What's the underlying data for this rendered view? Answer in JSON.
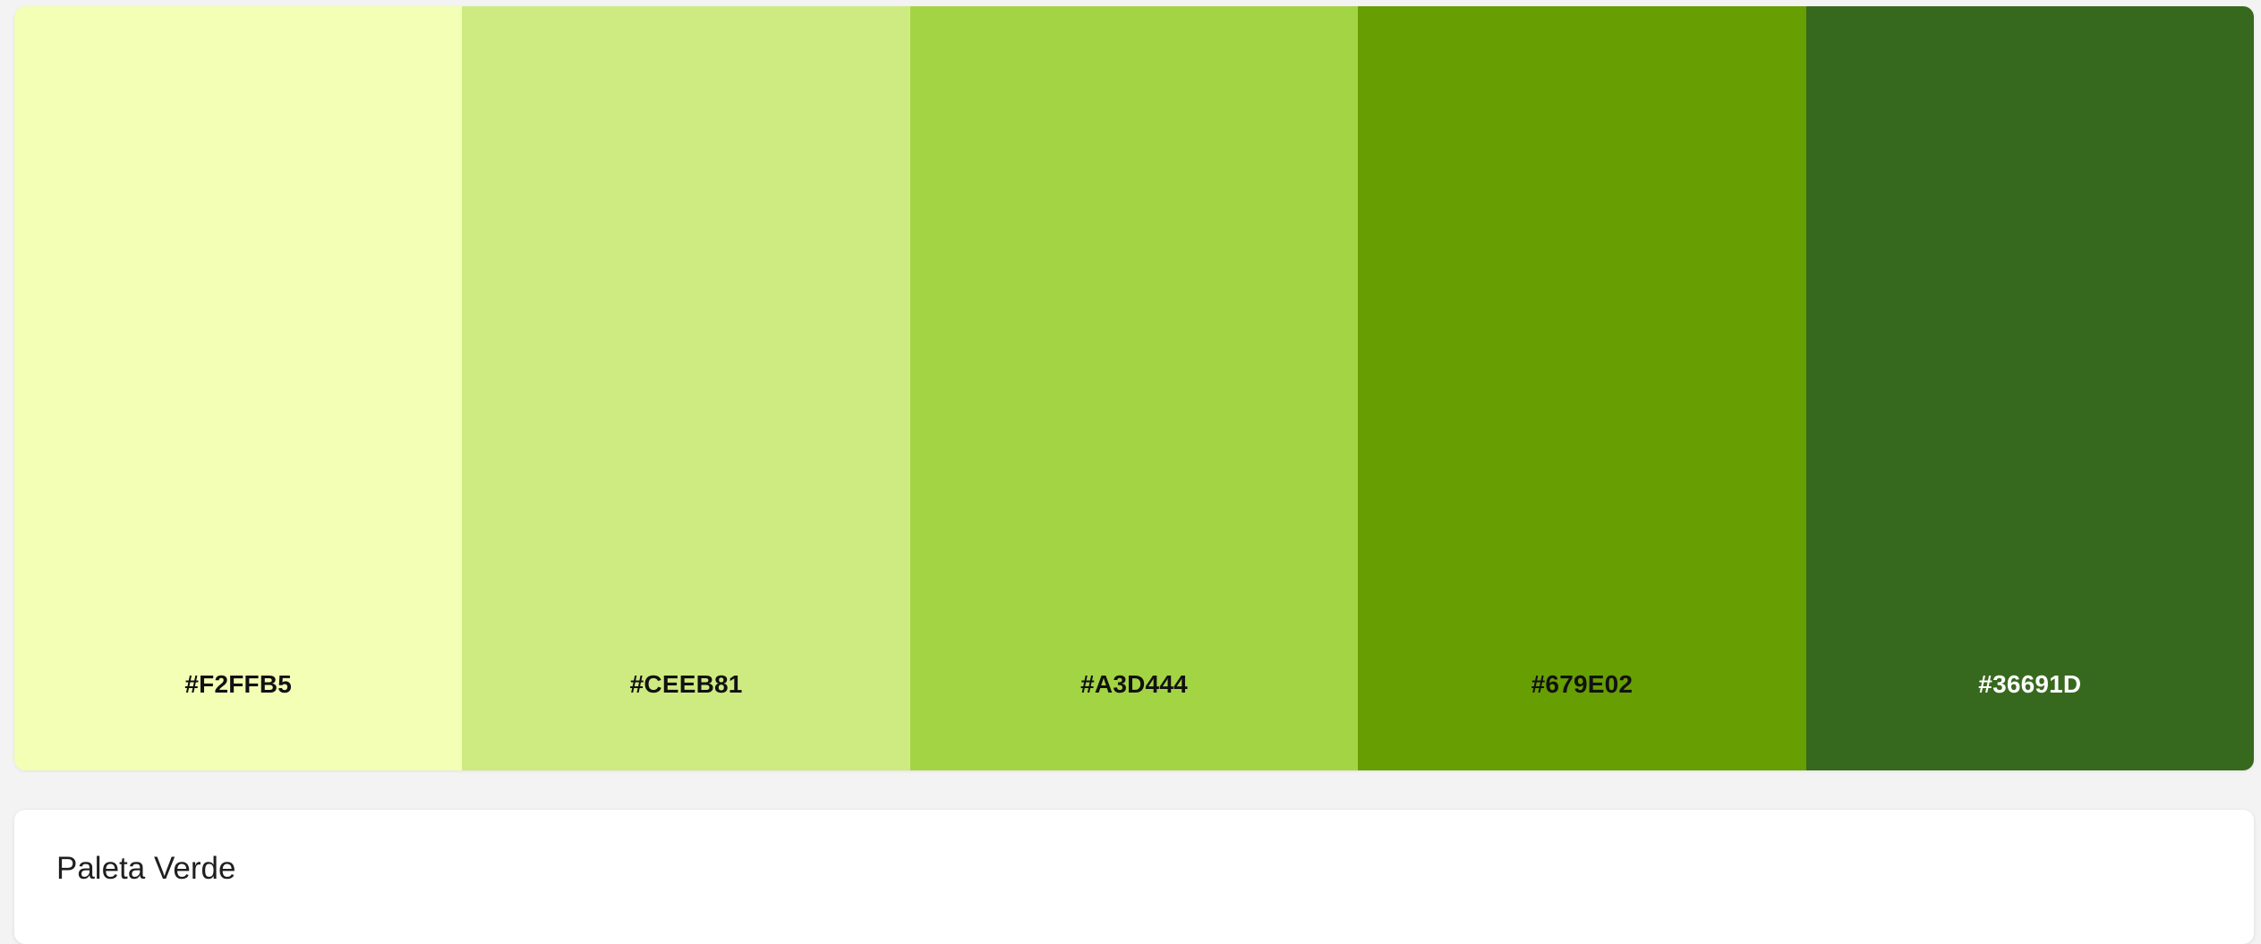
{
  "palette": {
    "title": "Paleta Verde",
    "swatches": [
      {
        "hex": "#F2FFB5",
        "color": "#F2FFB5",
        "text_color": "#111111"
      },
      {
        "hex": "#CEEB81",
        "color": "#CEEB81",
        "text_color": "#111111"
      },
      {
        "hex": "#A3D444",
        "color": "#A3D444",
        "text_color": "#111111"
      },
      {
        "hex": "#679E02",
        "color": "#679E02",
        "text_color": "#111111"
      },
      {
        "hex": "#36691D",
        "color": "#36691D",
        "text_color": "#FFFFFF"
      }
    ]
  }
}
